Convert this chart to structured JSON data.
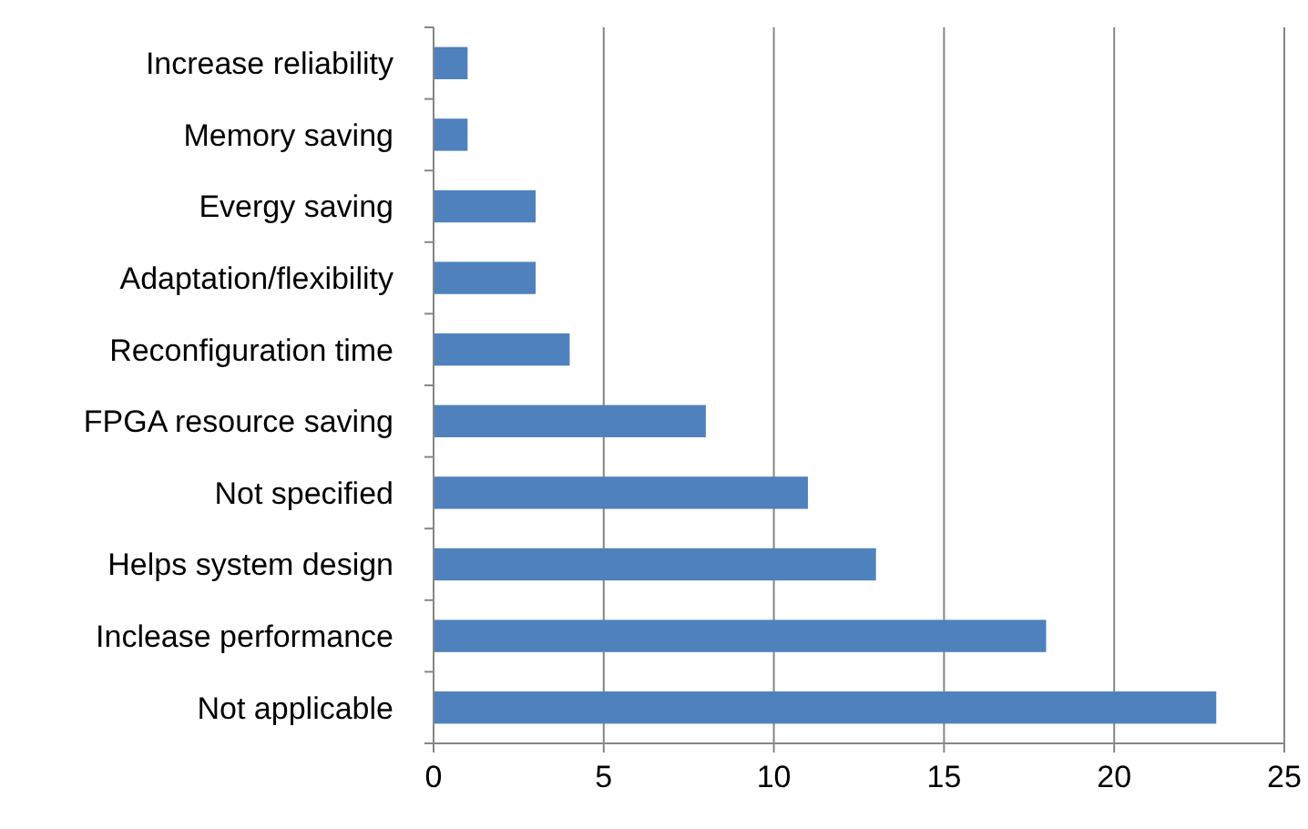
{
  "chart_data": {
    "type": "bar",
    "orientation": "horizontal",
    "categories": [
      "Increase reliability",
      "Memory saving",
      "Evergy saving",
      "Adaptation/flexibility",
      "Reconfiguration time",
      "FPGA resource saving",
      "Not specified",
      "Helps system design",
      "Inclease performance",
      "Not applicable"
    ],
    "values": [
      1,
      1,
      3,
      3,
      4,
      8,
      11,
      13,
      18,
      23
    ],
    "color": "#4f81bd",
    "xlim": [
      0,
      25
    ],
    "xticks": [
      0,
      5,
      10,
      15,
      20,
      25
    ],
    "grid": "x"
  }
}
